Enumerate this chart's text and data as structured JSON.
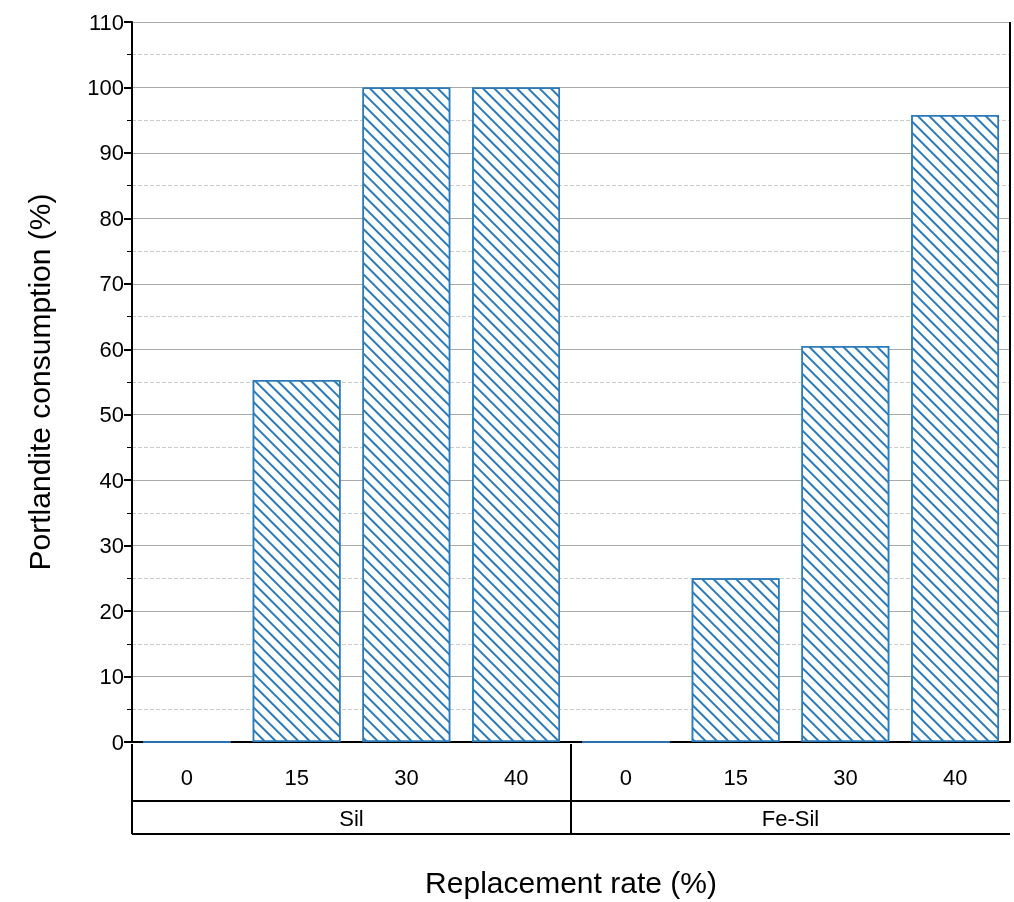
{
  "chart_data": {
    "type": "bar",
    "xlabel": "Replacement rate (%)",
    "ylabel": "Portlandite consumption (%)",
    "categories": [
      "0",
      "15",
      "30",
      "40",
      "0",
      "15",
      "30",
      "40"
    ],
    "values": [
      0,
      55.3,
      100,
      100,
      0,
      25,
      60.5,
      95.8
    ],
    "color": "#2b7bba",
    "ylim": [
      0,
      110
    ],
    "yticks": [
      0,
      10,
      20,
      30,
      40,
      50,
      60,
      70,
      80,
      90,
      100,
      110
    ],
    "grid": "y",
    "annotations": [
      "Sil",
      "Fe-Sil"
    ]
  }
}
